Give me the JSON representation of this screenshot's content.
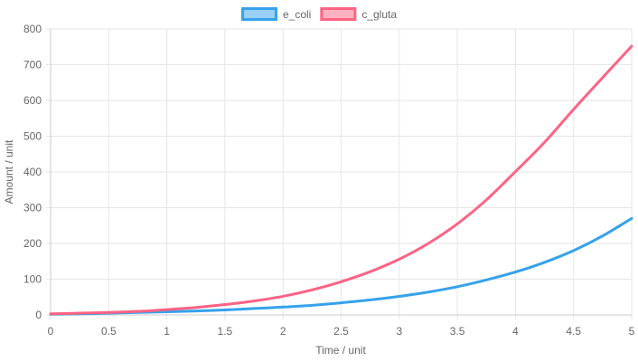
{
  "chart_data": {
    "type": "line",
    "xlabel": "Time / unit",
    "ylabel": "Amount / unit",
    "xlim": [
      0,
      5
    ],
    "ylim": [
      0,
      800
    ],
    "x_ticks": [
      "0",
      "0.5",
      "1",
      "1.5",
      "2",
      "2.5",
      "3",
      "3.5",
      "4",
      "4.5",
      "5"
    ],
    "y_ticks": [
      "0",
      "100",
      "200",
      "300",
      "400",
      "500",
      "600",
      "700",
      "800"
    ],
    "grid": true,
    "legend_position": "top-center",
    "x": [
      0,
      0.25,
      0.5,
      0.75,
      1,
      1.25,
      1.5,
      1.75,
      2,
      2.25,
      2.5,
      2.75,
      3,
      3.25,
      3.5,
      3.75,
      4,
      4.25,
      4.5,
      4.75,
      5
    ],
    "series": [
      {
        "name": "e_coli",
        "color": "#36a2eb",
        "fill": "#9ad0f5",
        "values": [
          2,
          3,
          5,
          7,
          9,
          11,
          14,
          18,
          22,
          27,
          34,
          42,
          52,
          64,
          79,
          98,
          120,
          147,
          180,
          221,
          270
        ]
      },
      {
        "name": "c_gluta",
        "color": "#ff6384",
        "fill": "#ffb1c1",
        "values": [
          3,
          5,
          7,
          10,
          15,
          21,
          29,
          39,
          52,
          70,
          93,
          121,
          156,
          200,
          255,
          322,
          401,
          483,
          575,
          664,
          752
        ]
      }
    ]
  }
}
